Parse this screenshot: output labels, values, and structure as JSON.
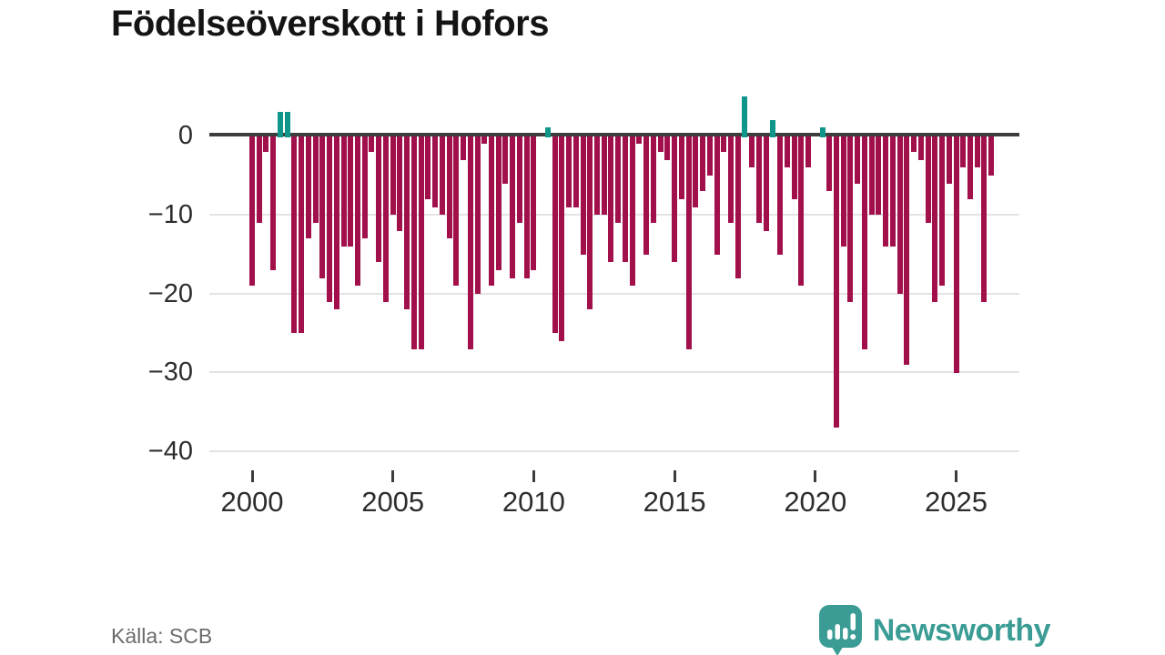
{
  "title": "Födelseöverskott i Hofors",
  "source": "Källa: SCB",
  "brand": {
    "name": "Newsworthy"
  },
  "colors": {
    "negative_bar": "#a2104c",
    "positive_bar": "#0f968a",
    "brand_teal": "#3a9c94",
    "axis": "#3d3d3d",
    "grid": "#e3e3e3",
    "tick_label": "#2d2d2d",
    "muted_text": "#6b6b6b",
    "title_text": "#141414"
  },
  "chart_data": {
    "type": "bar",
    "title": "Födelseöverskott i Hofors",
    "xlabel": "",
    "ylabel": "",
    "unit": "persons per quarter",
    "frequency": "quarterly",
    "start_period": "2000 Q1",
    "end_period": "2026 Q2",
    "ylim": [
      -40,
      6
    ],
    "grid": "horizontal",
    "legend": "none",
    "y_ticks": [
      {
        "label": "0",
        "value": 0
      },
      {
        "label": "−10",
        "value": -10
      },
      {
        "label": "−20",
        "value": -20
      },
      {
        "label": "−30",
        "value": -30
      },
      {
        "label": "−40",
        "value": -40
      }
    ],
    "x_ticks": [
      {
        "label": "2000",
        "year": 2000
      },
      {
        "label": "2005",
        "year": 2005
      },
      {
        "label": "2010",
        "year": 2010
      },
      {
        "label": "2015",
        "year": 2015
      },
      {
        "label": "2020",
        "year": 2020
      },
      {
        "label": "2025",
        "year": 2025
      }
    ],
    "values": [
      -19,
      -11,
      -2,
      -17,
      3,
      3,
      -25,
      -25,
      -13,
      -11,
      -18,
      -21,
      -22,
      -14,
      -14,
      -19,
      -13,
      -2,
      -16,
      -21,
      -10,
      -12,
      -22,
      -27,
      -27,
      -8,
      -9,
      -10,
      -13,
      -19,
      -3,
      -27,
      -20,
      -1,
      -19,
      -17,
      -6,
      -18,
      -11,
      -18,
      -17,
      0,
      1,
      -25,
      -26,
      -9,
      -9,
      -15,
      -22,
      -10,
      -10,
      -16,
      -11,
      -16,
      -19,
      -1,
      -15,
      -11,
      -2,
      -3,
      -16,
      -8,
      -27,
      -9,
      -7,
      -5,
      -15,
      -2,
      -11,
      -18,
      5,
      -4,
      -11,
      -12,
      2,
      -15,
      -4,
      -8,
      -19,
      -4,
      0,
      1,
      -7,
      -37,
      -14,
      -21,
      -6,
      -27,
      -10,
      -10,
      -14,
      -14,
      -20,
      -29,
      -2,
      -3,
      -11,
      -21,
      -19,
      -6,
      -30,
      -4,
      -8,
      -4,
      -21,
      -5
    ]
  }
}
